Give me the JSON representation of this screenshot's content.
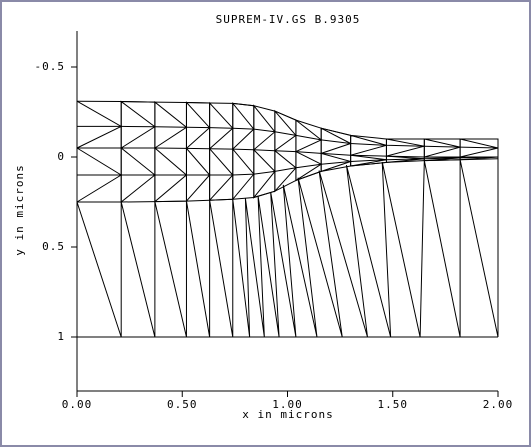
{
  "chart_data": {
    "type": "line",
    "title": "SUPREM-IV.GS B.9305",
    "x_label": "x in microns",
    "y_label": "y in microns",
    "xlim": [
      0,
      2
    ],
    "ylim": [
      -0.7,
      1.3
    ],
    "y_inverted": true,
    "xticks": [
      {
        "value": 0,
        "label": "0.00"
      },
      {
        "value": 0.5,
        "label": "0.50"
      },
      {
        "value": 1,
        "label": "1.00"
      },
      {
        "value": 1.5,
        "label": "1.50"
      },
      {
        "value": 2,
        "label": "2.00"
      }
    ],
    "yticks": [
      -0.5,
      0,
      0.5,
      1
    ],
    "series": [
      {
        "color": "#000000",
        "x": [
          0,
          0.21,
          0.37,
          0.52,
          0.63,
          0.74,
          0.84,
          0.94,
          1.04,
          1.16,
          1.3,
          1.47,
          1.65,
          1.82,
          2.0
        ],
        "values": [
          -0.31,
          -0.308,
          -0.305,
          -0.303,
          -0.3,
          -0.298,
          -0.285,
          -0.255,
          -0.205,
          -0.16,
          -0.12,
          -0.1,
          -0.1,
          -0.1,
          -0.1
        ]
      },
      {
        "color": "#000000",
        "x": [
          0,
          0.21,
          0.37,
          0.52,
          0.63,
          0.74,
          0.84,
          0.94,
          1.04,
          1.16,
          1.3,
          1.47,
          1.65,
          1.82,
          2.0
        ],
        "values": [
          -0.17,
          -0.17,
          -0.168,
          -0.165,
          -0.163,
          -0.16,
          -0.155,
          -0.14,
          -0.12,
          -0.095,
          -0.075,
          -0.065,
          -0.06,
          -0.055,
          -0.05
        ]
      },
      {
        "color": "#000000",
        "x": [
          0,
          0.21,
          0.37,
          0.52,
          0.63,
          0.74,
          0.84,
          0.94,
          1.04,
          1.16,
          1.3,
          1.47,
          1.65,
          1.82,
          2.0
        ],
        "values": [
          -0.05,
          -0.05,
          -0.05,
          -0.048,
          -0.046,
          -0.044,
          -0.04,
          -0.035,
          -0.03,
          -0.02,
          -0.01,
          -0.005,
          0,
          0,
          0
        ]
      },
      {
        "color": "#000000",
        "x": [
          0,
          0.21,
          0.37,
          0.52,
          0.63,
          0.74,
          0.84,
          0.94,
          1.04,
          1.16,
          1.3,
          1.47,
          1.65,
          1.82,
          2.0
        ],
        "values": [
          0.1,
          0.1,
          0.1,
          0.1,
          0.1,
          0.1,
          0.095,
          0.08,
          0.06,
          0.04,
          0.025,
          0.015,
          0.01,
          0.005,
          0
        ]
      },
      {
        "color": "#000000",
        "x": [
          0,
          0.21,
          0.37,
          0.52,
          0.63,
          0.74,
          0.84,
          0.94,
          1.04,
          1.16,
          1.3,
          1.47,
          1.65,
          1.82,
          2.0
        ],
        "values": [
          0.25,
          0.25,
          0.248,
          0.245,
          0.24,
          0.235,
          0.225,
          0.19,
          0.13,
          0.08,
          0.05,
          0.03,
          0.02,
          0.015,
          0.01
        ]
      },
      {
        "color": "#000000",
        "x": [
          0,
          0,
          0.21,
          0.21,
          0.37,
          0.37,
          0.52,
          0.52,
          0.63,
          0.63,
          0.74,
          0.74,
          0.84,
          0.84,
          0.94,
          0.94,
          1.04,
          1.04,
          1.16,
          1.16,
          1.3,
          1.3,
          1.47,
          1.47,
          1.65,
          1.65,
          1.82,
          1.82,
          2.0,
          2.0
        ],
        "values": [
          -0.31,
          0.25,
          0.25,
          -0.308,
          -0.305,
          0.248,
          0.245,
          -0.303,
          -0.3,
          0.24,
          0.235,
          -0.298,
          -0.285,
          0.225,
          0.19,
          -0.255,
          -0.205,
          0.13,
          0.08,
          -0.16,
          -0.12,
          0.05,
          0.03,
          -0.1,
          -0.1,
          0.02,
          0.015,
          -0.1,
          -0.1,
          0.01
        ]
      },
      {
        "color": "#000000",
        "x": [
          0,
          0.21,
          0.21,
          0.37,
          0.37,
          0.52,
          0.52,
          0.63,
          0.63,
          0.74,
          0.74,
          0.84,
          0.84,
          0.94,
          0.94,
          1.04,
          1.04,
          1.16,
          1.16,
          1.3,
          1.3,
          1.47,
          1.47,
          1.65,
          1.65,
          1.82,
          1.82,
          2.0,
          2.0
        ],
        "values": [
          -0.31,
          -0.17,
          -0.308,
          -0.168,
          -0.305,
          -0.165,
          -0.303,
          -0.163,
          -0.3,
          -0.16,
          -0.298,
          -0.155,
          -0.285,
          -0.14,
          -0.255,
          -0.12,
          -0.205,
          -0.095,
          -0.16,
          -0.075,
          -0.12,
          -0.065,
          -0.1,
          -0.06,
          -0.1,
          -0.055,
          -0.1,
          -0.05,
          -0.1
        ]
      },
      {
        "color": "#000000",
        "x": [
          0,
          0.21,
          0.21,
          0.37,
          0.37,
          0.52,
          0.52,
          0.63,
          0.63,
          0.74,
          0.74,
          0.84,
          0.84,
          0.94,
          0.94,
          1.04,
          1.04,
          1.16,
          1.16,
          1.3,
          1.3,
          1.47,
          1.47,
          1.65,
          1.65,
          1.82,
          1.82,
          2.0,
          2.0
        ],
        "values": [
          -0.05,
          -0.17,
          -0.05,
          -0.168,
          -0.05,
          -0.165,
          -0.048,
          -0.163,
          -0.046,
          -0.16,
          -0.044,
          -0.155,
          -0.04,
          -0.14,
          -0.035,
          -0.12,
          -0.03,
          -0.095,
          -0.02,
          -0.075,
          -0.01,
          -0.065,
          -0.005,
          -0.06,
          0,
          -0.055,
          0,
          -0.05,
          0
        ]
      },
      {
        "color": "#000000",
        "x": [
          0,
          0.21,
          0.21,
          0.37,
          0.37,
          0.52,
          0.52,
          0.63,
          0.63,
          0.74,
          0.74,
          0.84,
          0.84,
          0.94,
          0.94,
          1.04,
          1.04,
          1.16,
          1.16,
          1.3,
          1.3,
          1.47,
          1.47,
          1.65,
          1.65,
          1.82,
          1.82,
          2.0,
          2.0
        ],
        "values": [
          -0.05,
          0.1,
          -0.05,
          0.1,
          -0.05,
          0.1,
          -0.048,
          0.1,
          -0.046,
          0.1,
          -0.044,
          0.095,
          -0.04,
          0.08,
          -0.035,
          0.06,
          -0.03,
          0.04,
          -0.02,
          0.025,
          -0.01,
          0.015,
          -0.005,
          0.01,
          0,
          0.005,
          0,
          0,
          0
        ]
      },
      {
        "color": "#000000",
        "x": [
          0,
          0.21,
          0.21,
          0.37,
          0.37,
          0.52,
          0.52,
          0.63,
          0.63,
          0.74,
          0.74,
          0.84,
          0.84,
          0.94,
          0.94,
          1.04,
          1.04,
          1.16,
          1.16,
          1.3,
          1.3,
          1.47,
          1.47,
          1.65,
          1.65,
          1.82,
          1.82,
          2.0,
          2.0
        ],
        "values": [
          0.25,
          0.1,
          0.25,
          0.1,
          0.248,
          0.1,
          0.245,
          0.1,
          0.24,
          0.1,
          0.235,
          0.095,
          0.225,
          0.08,
          0.19,
          0.06,
          0.13,
          0.04,
          0.08,
          0.025,
          0.05,
          0.015,
          0.03,
          0.01,
          0.02,
          0.005,
          0.015,
          0,
          0.01
        ]
      },
      {
        "color": "#000000",
        "x": [
          0,
          0.21,
          0.21,
          0.37,
          0.37,
          0.52,
          0.52,
          0.63,
          0.63,
          0.74,
          0.74,
          0.82,
          0.8,
          0.89,
          0.86,
          0.96,
          0.92,
          1.04,
          0.98,
          1.14,
          1.05,
          1.26,
          1.15,
          1.38,
          1.28,
          1.49,
          1.45,
          1.63,
          1.65,
          1.82,
          1.82,
          2.0,
          2.0
        ],
        "values": [
          0.25,
          1,
          0.25,
          1,
          0.248,
          1,
          0.245,
          1,
          0.24,
          1,
          0.235,
          1,
          0.23,
          1,
          0.215,
          1,
          0.195,
          1,
          0.155,
          1,
          0.115,
          1,
          0.075,
          1,
          0.045,
          1,
          0.028,
          1,
          0.02,
          1,
          0.015,
          1,
          0.01
        ]
      },
      {
        "color": "#000000",
        "x": [
          0,
          2
        ],
        "values": [
          1,
          1
        ]
      },
      {
        "color": "#000000",
        "x": [
          0,
          0
        ],
        "values": [
          0.25,
          1
        ]
      },
      {
        "color": "#000000",
        "x": [
          2,
          2
        ],
        "values": [
          -0.1,
          1
        ]
      }
    ]
  }
}
